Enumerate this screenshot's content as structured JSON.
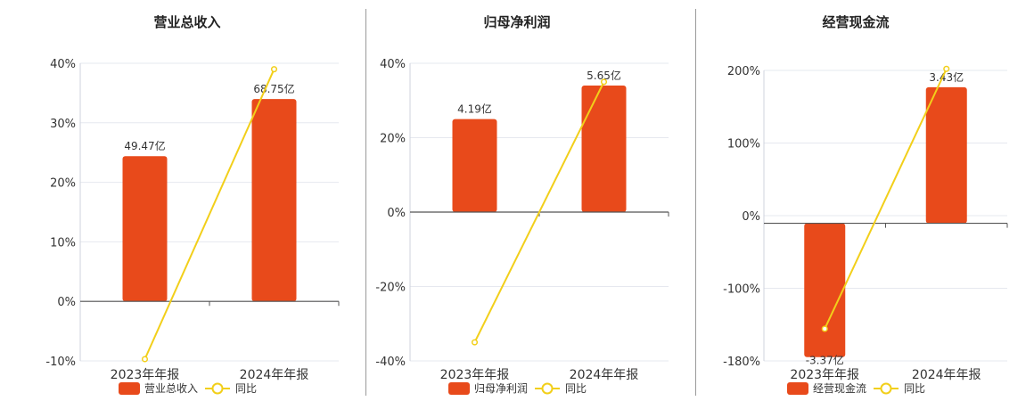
{
  "chart_data": [
    {
      "type": "bar",
      "title": "营业总收入",
      "categories": [
        "2023年年报",
        "2024年年报"
      ],
      "ytick_labels": [
        "40%",
        "30%",
        "20%",
        "10%",
        "0%",
        "-10%"
      ],
      "ylim": [
        -10,
        40
      ],
      "series": [
        {
          "name": "营业总收入",
          "kind": "bar",
          "values": [
            24.4,
            34
          ],
          "data_labels": [
            "49.47亿",
            "68.75亿"
          ],
          "color": "#e84a1b"
        },
        {
          "name": "同比",
          "kind": "line",
          "values": [
            -9.7,
            39
          ],
          "color": "#f2cf1a"
        }
      ],
      "grid": true,
      "legend": "bottom"
    },
    {
      "type": "bar",
      "title": "归母净利润",
      "categories": [
        "2023年年报",
        "2024年年报"
      ],
      "ytick_labels": [
        "40%",
        "20%",
        "0%",
        "-20%",
        "-40%"
      ],
      "ylim": [
        -40,
        40
      ],
      "series": [
        {
          "name": "归母净利润",
          "kind": "bar",
          "values": [
            25,
            34
          ],
          "data_labels": [
            "4.19亿",
            "5.65亿"
          ],
          "color": "#e84a1b"
        },
        {
          "name": "同比",
          "kind": "line",
          "values": [
            -35,
            35
          ],
          "color": "#f2cf1a"
        }
      ],
      "grid": true,
      "legend": "bottom"
    },
    {
      "type": "bar",
      "title": "经营现金流",
      "categories": [
        "2023年年报",
        "2024年年报"
      ],
      "ytick_labels": [
        "200%",
        "100%",
        "0%",
        "-100%",
        "-180%"
      ],
      "ylim": [
        -180,
        200
      ],
      "series": [
        {
          "name": "经营现金流",
          "kind": "bar",
          "values": [
            -175,
            178
          ],
          "data_labels": [
            "-3.37亿",
            "3.43亿"
          ],
          "color": "#e84a1b"
        },
        {
          "name": "同比",
          "kind": "line",
          "values": [
            -138,
            202
          ],
          "color": "#f2cf1a"
        }
      ],
      "grid": true,
      "legend": "bottom"
    }
  ]
}
